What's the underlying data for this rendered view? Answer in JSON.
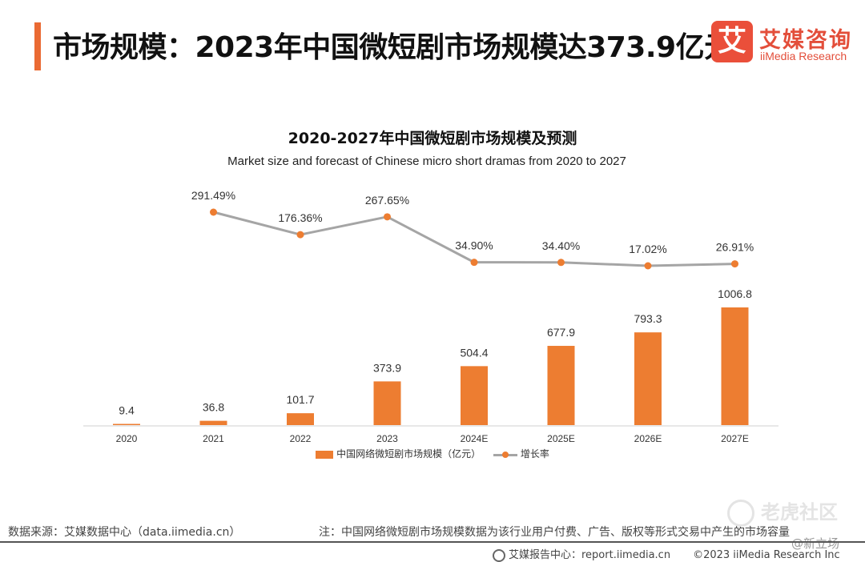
{
  "header": {
    "title": "市场规模：2023年中国微短剧市场规模达373.9亿元",
    "logo_mark": "艾",
    "logo_cn": "艾媒咨询",
    "logo_en": "iiMedia Research"
  },
  "chart_data": {
    "type": "bar",
    "title": "2020-2027年中国微短剧市场规模及预测",
    "subtitle": "Market size and forecast of Chinese micro short dramas from 2020 to 2027",
    "categories": [
      "2020",
      "2021",
      "2022",
      "2023",
      "2024E",
      "2025E",
      "2026E",
      "2027E"
    ],
    "series": [
      {
        "name": "中国网络微短剧市场规模（亿元）",
        "type": "bar",
        "color": "#ed7d31",
        "values": [
          9.4,
          36.8,
          101.7,
          373.9,
          504.4,
          677.9,
          793.3,
          1006.8
        ],
        "labels": [
          "9.4",
          "36.8",
          "101.7",
          "373.9",
          "504.4",
          "677.9",
          "793.3",
          "1006.8"
        ]
      },
      {
        "name": "增长率",
        "type": "line",
        "line_color": "#a5a5a5",
        "marker_color": "#ed7d31",
        "values": [
          null,
          291.49,
          176.36,
          267.65,
          34.9,
          34.4,
          17.02,
          26.91
        ],
        "labels": [
          "",
          "291.49%",
          "176.36%",
          "267.65%",
          "34.90%",
          "34.40%",
          "17.02%",
          "26.91%"
        ]
      }
    ],
    "ylim": [
      0,
      1100
    ],
    "y2lim": [
      0,
      700
    ],
    "grid": false,
    "legend_position": "bottom"
  },
  "footer": {
    "source": "数据来源：艾媒数据中心（data.iimedia.cn）",
    "note": "注：中国网络微短剧市场规模数据为该行业用户付费、广告、版权等形式交易中产生的市场容量",
    "report_center": "艾媒报告中心：report.iimedia.cn",
    "copyright": "©2023  iiMedia Research Inc",
    "watermark": "老虎社区",
    "handle": "@新立场"
  }
}
